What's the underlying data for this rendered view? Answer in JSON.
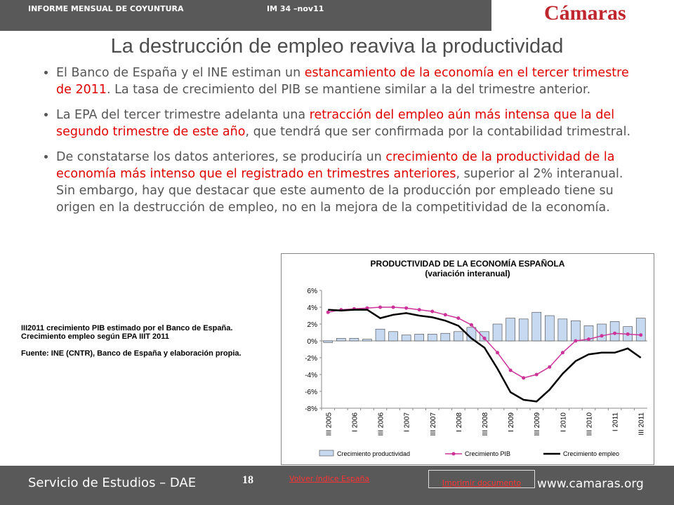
{
  "header": {
    "report": "INFORME MENSUAL DE COYUNTURA",
    "issue": "IM 34 –nov11",
    "logo": "Cámaras"
  },
  "title": "La destrucción de empleo reaviva la productividad",
  "bullets": [
    {
      "segments": [
        {
          "text": "El Banco de España y el INE estiman un ",
          "color": "#555555"
        },
        {
          "text": "estancamiento de la economía en el tercer trimestre de 2011",
          "color": "#e00000"
        },
        {
          "text": ". La tasa de crecimiento del PIB se mantiene similar a la del trimestre anterior.",
          "color": "#555555"
        }
      ]
    },
    {
      "segments": [
        {
          "text": "La EPA del tercer trimestre adelanta una ",
          "color": "#555555"
        },
        {
          "text": "retracción del empleo aún más intensa que la del segundo trimestre de este año",
          "color": "#e00000"
        },
        {
          "text": ", que tendrá que ser confirmada por la contabilidad trimestral.",
          "color": "#555555"
        }
      ]
    },
    {
      "segments": [
        {
          "text": "De constatarse los datos anteriores, se produciría un ",
          "color": "#555555"
        },
        {
          "text": "crecimiento de la productividad de la economía más intenso que el registrado en trimestres anteriores",
          "color": "#e00000"
        },
        {
          "text": ", superior al 2% interanual. Sin embargo, hay que destacar que este aumento de la producción por empleado tiene su origen en la destrucción de empleo, no en la mejora de la competitividad de la economía.",
          "color": "#555555"
        }
      ]
    }
  ],
  "notes": [
    "III2011 crecimiento PIB estimado por el Banco de España. Crecimiento empleo  según EPA IIIT 2011",
    "Fuente: INE (CNTR), Banco de España y elaboración propia."
  ],
  "footer": {
    "left": "Servicio de Estudios – DAE",
    "page": "18",
    "back_link": "Volver índice España",
    "print_link": "Imprimir documento",
    "url": "www.camaras.org"
  },
  "chart_data": {
    "type": "bar_line",
    "title": "PRODUCTIVIDAD DE LA ECONOMÍA ESPAÑOLA",
    "subtitle": "(variación interanual)",
    "categories": [
      "III 2005",
      null,
      "I 2006",
      null,
      "III 2006",
      null,
      "I 2007",
      null,
      "III 2007",
      null,
      "I 2008",
      null,
      "III 2008",
      null,
      "I 2009",
      null,
      "III 2009",
      null,
      "I 2010",
      null,
      "III 2010",
      null,
      "I 2011",
      null,
      "III 2011"
    ],
    "series": [
      {
        "name": "Crecimiento productividad",
        "type": "bar",
        "color": "#c6d9f1",
        "values": [
          -0.2,
          0.3,
          0.3,
          0.2,
          1.4,
          1.1,
          0.7,
          0.8,
          0.8,
          0.9,
          1.1,
          1.6,
          1.1,
          2.0,
          2.7,
          2.6,
          3.4,
          3.0,
          2.6,
          2.4,
          1.8,
          2.0,
          2.3,
          1.7,
          2.7
        ]
      },
      {
        "name": "Crecimiento PIB",
        "type": "line",
        "color": "#cc3399",
        "values": [
          3.4,
          3.7,
          3.8,
          3.9,
          4.0,
          4.0,
          3.9,
          3.7,
          3.5,
          3.1,
          2.7,
          1.9,
          0.3,
          -1.4,
          -3.5,
          -4.4,
          -4.0,
          -3.1,
          -1.4,
          0.0,
          0.2,
          0.6,
          0.9,
          0.8,
          0.7
        ]
      },
      {
        "name": "Crecimiento empleo",
        "type": "line",
        "color": "#000000",
        "values": [
          3.7,
          3.6,
          3.7,
          3.7,
          2.7,
          3.1,
          3.3,
          3.0,
          2.8,
          2.4,
          1.8,
          0.3,
          -0.8,
          -3.3,
          -6.1,
          -7.0,
          -7.2,
          -5.8,
          -3.9,
          -2.4,
          -1.6,
          -1.4,
          -1.4,
          -0.9,
          -2.0
        ]
      }
    ],
    "ylim": [
      -8,
      6
    ],
    "yticks": [
      {
        "value": -8,
        "label": "-8%"
      },
      {
        "value": -6,
        "label": "-6%"
      },
      {
        "value": -4,
        "label": "-4%"
      },
      {
        "value": -2,
        "label": "-2%"
      },
      {
        "value": 0,
        "label": "0%"
      },
      {
        "value": 2,
        "label": "2%"
      },
      {
        "value": 4,
        "label": "4%"
      },
      {
        "value": 6,
        "label": "6%"
      }
    ],
    "legend": "bottom"
  }
}
